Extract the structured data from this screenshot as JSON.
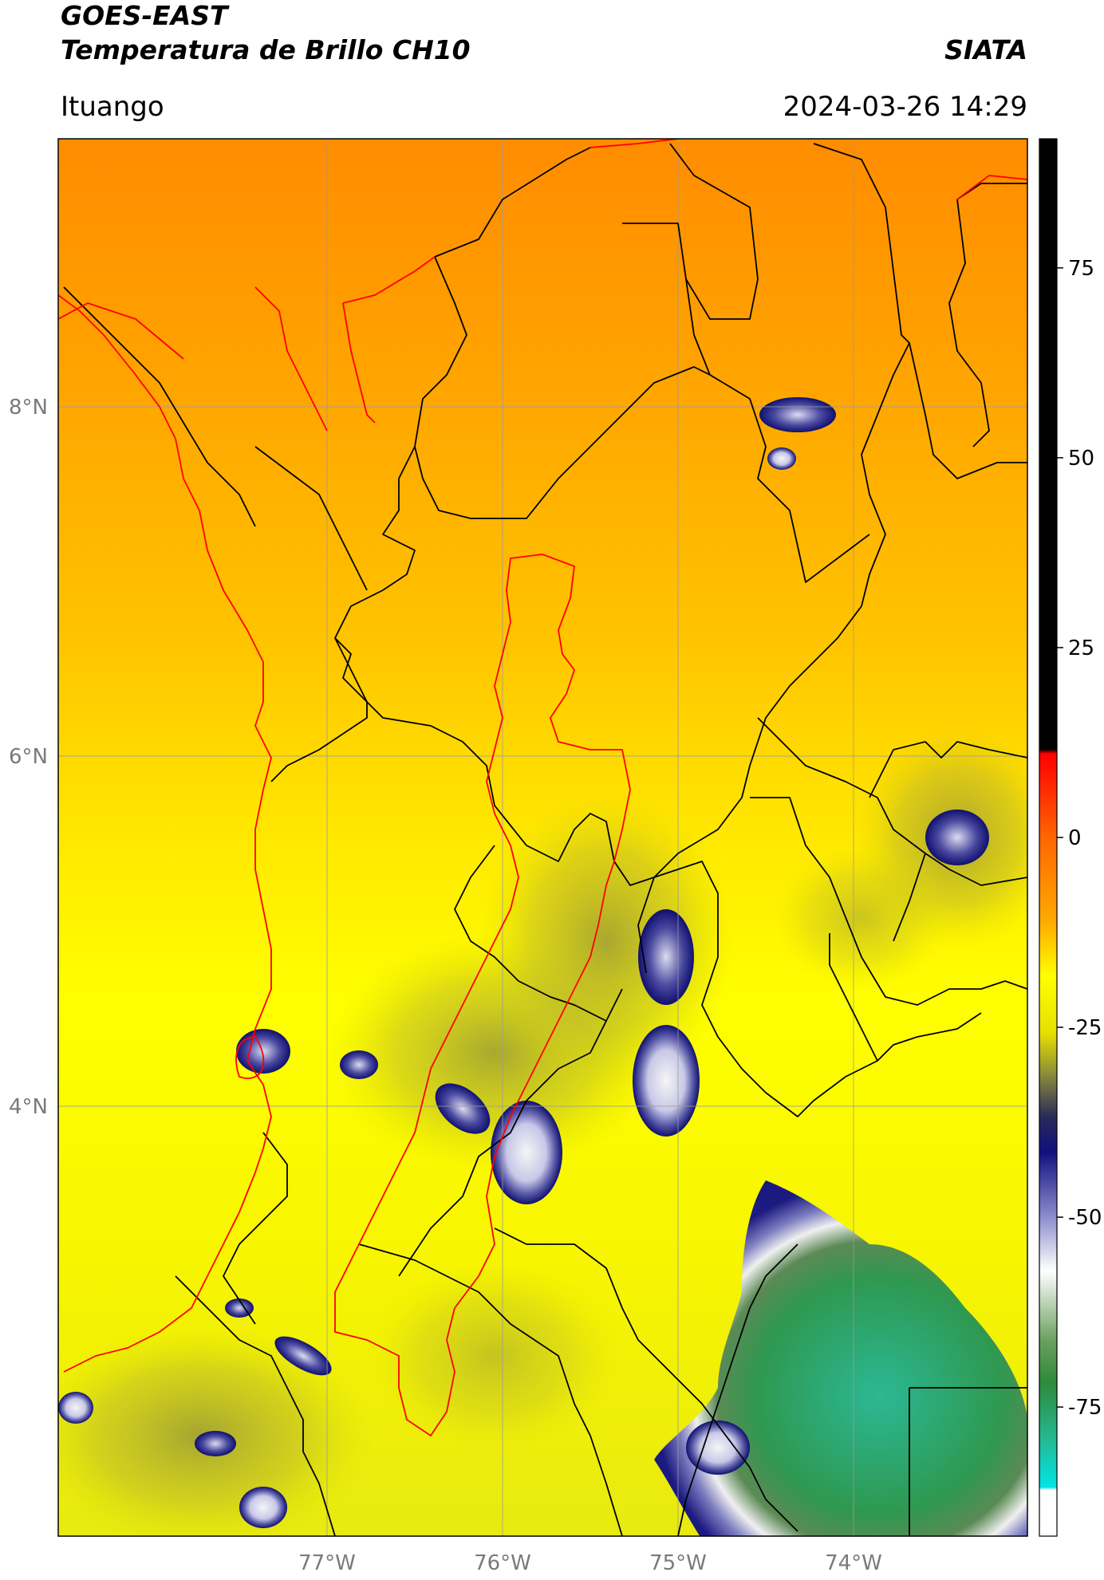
{
  "header": {
    "satellite": "GOES-EAST",
    "product": "Temperatura de Brillo CH10",
    "organization": "SIATA",
    "location": "Ituango",
    "timestamp": "2024-03-26 14:29"
  },
  "map": {
    "longitude_labels": [
      "77°W",
      "76°W",
      "75°W",
      "74°W"
    ],
    "latitude_labels": [
      "8°N",
      "6°N",
      "4°N"
    ],
    "colors": {
      "background_orange": "#ff9a00",
      "background_yellow": "#ffff00",
      "boundary_black": "#000000",
      "basin_red": "#ff0000",
      "gridline": "#9a9a9a"
    }
  },
  "colorbar": {
    "tick_labels": [
      "75",
      "50",
      "25",
      "0",
      "-25",
      "-50",
      "-75"
    ],
    "tick_values": [
      75,
      50,
      25,
      0,
      -25,
      -50,
      -75
    ],
    "range": [
      -92,
      92
    ]
  }
}
